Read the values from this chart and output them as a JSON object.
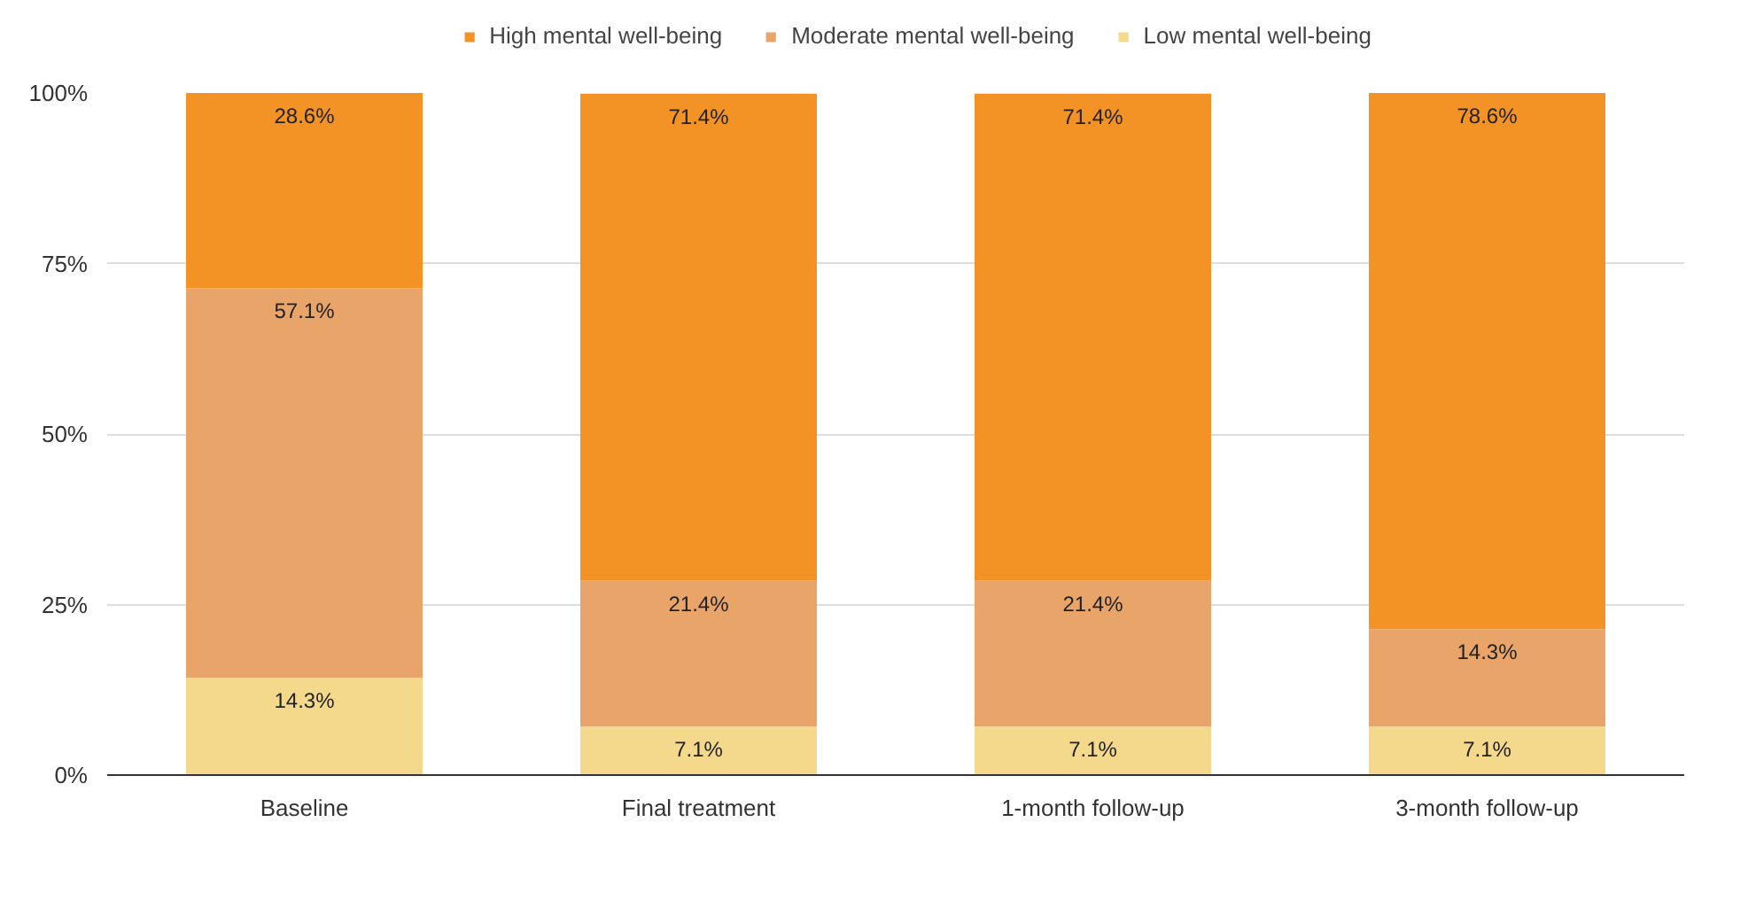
{
  "chart_data": {
    "type": "bar",
    "stacked": true,
    "categories": [
      "Baseline",
      "Final treatment",
      "1-month follow-up",
      "3-month follow-up"
    ],
    "series": [
      {
        "name": "Low mental well-being",
        "color": "#f4d98c",
        "values": [
          14.3,
          7.1,
          7.1,
          7.1
        ],
        "value_labels": [
          "14.3%",
          "7.1%",
          "7.1%",
          "7.1%"
        ]
      },
      {
        "name": "Moderate mental well-being",
        "color": "#e9a46a",
        "values": [
          57.1,
          21.4,
          21.4,
          14.3
        ],
        "value_labels": [
          "57.1%",
          "21.4%",
          "21.4%",
          "14.3%"
        ]
      },
      {
        "name": "High mental well-being",
        "color": "#f39325",
        "values": [
          28.6,
          71.4,
          71.4,
          78.6
        ],
        "value_labels": [
          "28.6%",
          "71.4%",
          "71.4%",
          "78.6%"
        ]
      }
    ],
    "ylim": [
      0,
      100
    ],
    "yticks": [
      {
        "value": 0,
        "label": "0%"
      },
      {
        "value": 25,
        "label": "25%"
      },
      {
        "value": 50,
        "label": "50%"
      },
      {
        "value": 75,
        "label": "75%"
      },
      {
        "value": 100,
        "label": "100%"
      }
    ],
    "grid": "y",
    "legend": "top"
  }
}
